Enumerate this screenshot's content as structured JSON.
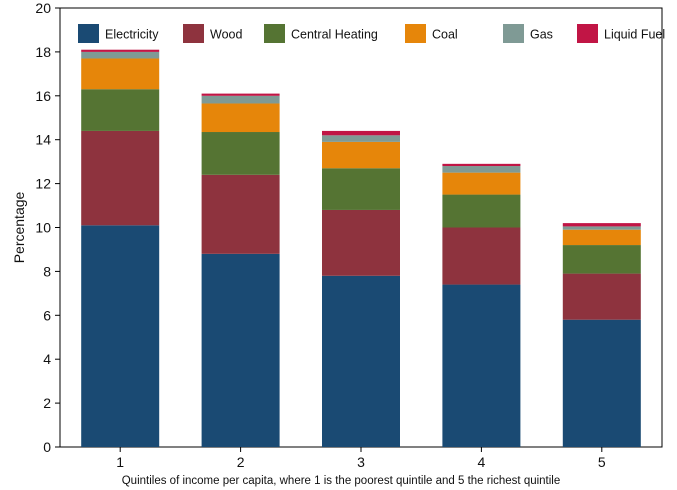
{
  "chart_data": {
    "type": "bar",
    "stacked": true,
    "xlabel": "Quintiles of income per capita, where 1 is the poorest quintile and 5 the richest quintile",
    "ylabel": "Percentage",
    "ylim": [
      0,
      20
    ],
    "yticks": [
      0,
      2,
      4,
      6,
      8,
      10,
      12,
      14,
      16,
      18,
      20
    ],
    "categories": [
      "1",
      "2",
      "3",
      "4",
      "5"
    ],
    "legend_position": "top",
    "series": [
      {
        "name": "Electricity",
        "color": "#1a4a73",
        "values": [
          10.1,
          8.8,
          7.8,
          7.4,
          5.8
        ]
      },
      {
        "name": "Wood",
        "color": "#8e333e",
        "values": [
          4.3,
          3.6,
          3.0,
          2.6,
          2.1
        ]
      },
      {
        "name": "Central Heating",
        "color": "#557433",
        "values": [
          1.9,
          1.95,
          1.9,
          1.5,
          1.3
        ]
      },
      {
        "name": "Coal",
        "color": "#e6860a",
        "values": [
          1.4,
          1.3,
          1.2,
          1.0,
          0.7
        ]
      },
      {
        "name": "Gas",
        "color": "#7f9a95",
        "values": [
          0.3,
          0.35,
          0.3,
          0.3,
          0.15
        ]
      },
      {
        "name": "Liquid Fuel",
        "color": "#c11545",
        "values": [
          0.1,
          0.1,
          0.2,
          0.1,
          0.15
        ]
      }
    ]
  }
}
